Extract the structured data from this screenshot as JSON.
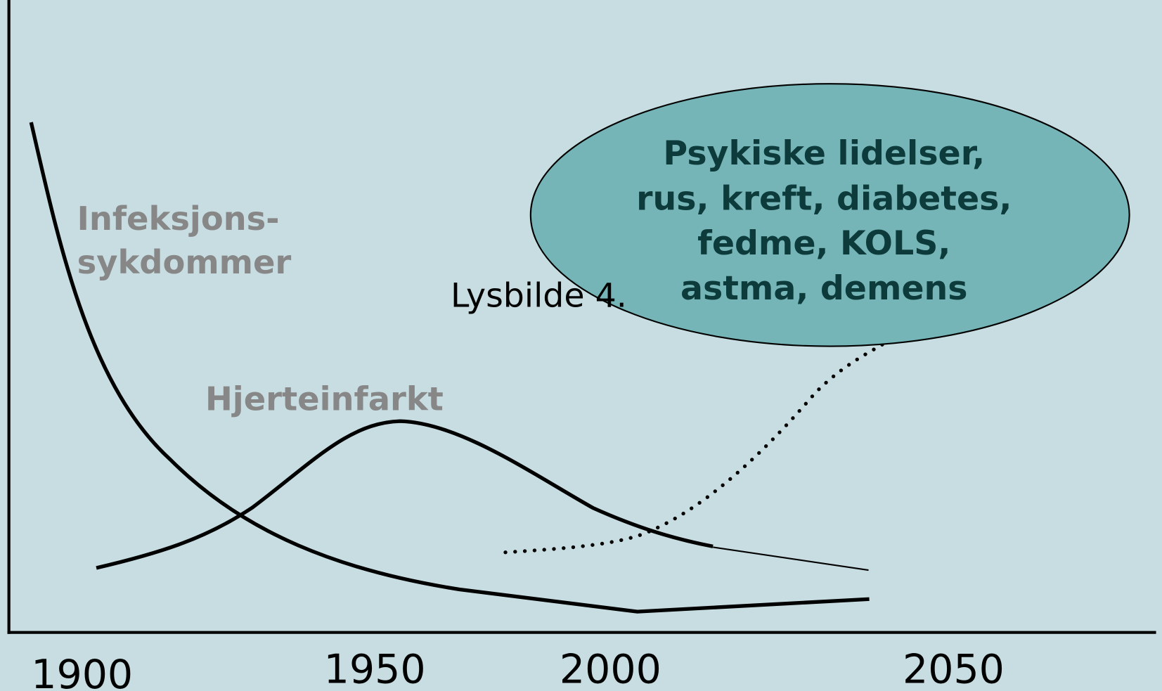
{
  "axis_labels": [
    "1900",
    "1950",
    "2000",
    "2050"
  ],
  "curve_labels": {
    "infection": [
      "Infeksjons-",
      "sykdommer"
    ],
    "heart": "Hjerteinfarkt"
  },
  "slide_label": "Lysbilde 4.",
  "bubble": {
    "lines": [
      "Psykiske lidelser,",
      "rus, kreft, diabetes,",
      "fedme, KOLS,",
      "astma, demens"
    ]
  }
}
